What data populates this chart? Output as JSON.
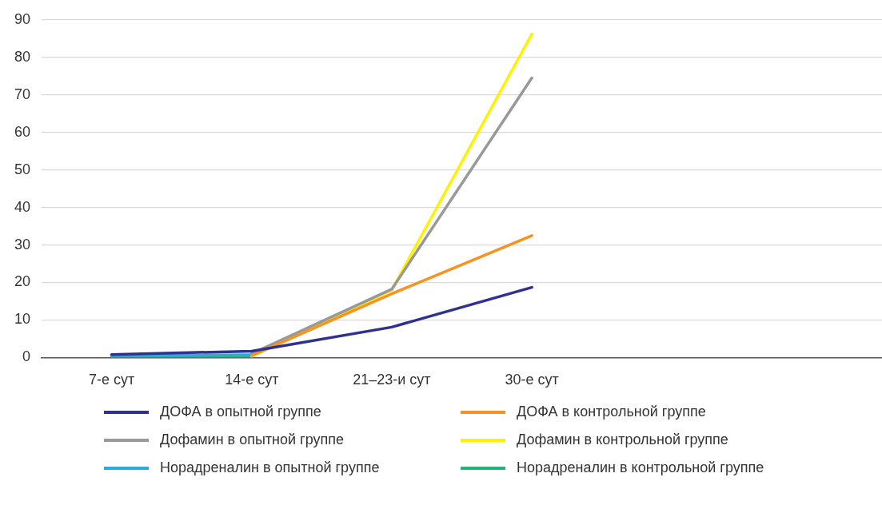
{
  "chart_data": {
    "type": "line",
    "categories": [
      "7-е сут",
      "14-е сут",
      "21–23-и сут",
      "30-е сут",
      null,
      null
    ],
    "series": [
      {
        "name": "ДОФА в опытной группе",
        "color": "#2e3192",
        "values": [
          0.8,
          1.7,
          8.1,
          18.7,
          null,
          null
        ]
      },
      {
        "name": "ДОФА в контрольной группе",
        "color": "#f7931e",
        "values": [
          null,
          0.5,
          17,
          32.5,
          null,
          null
        ]
      },
      {
        "name": "Дофамин в опытной группе",
        "color": "#999999",
        "values": [
          null,
          1,
          18.2,
          74.5,
          null,
          null
        ]
      },
      {
        "name": "Дофамин в контрольной группе",
        "color": "#fff200",
        "values": [
          null,
          0.3,
          18,
          86.2,
          null,
          null
        ]
      },
      {
        "name": "Норадреналин в опытной группе",
        "color": "#29abe2",
        "values": [
          0.5,
          0.7,
          null,
          null,
          null,
          null
        ]
      },
      {
        "name": "Норадреналин в контрольной группе",
        "color": "#22b573",
        "values": [
          0.1,
          0.1,
          null,
          null,
          null,
          null
        ]
      }
    ],
    "ylim": [
      0,
      90
    ],
    "yticks": [
      0,
      10,
      20,
      30,
      40,
      50,
      60,
      70,
      80,
      90
    ],
    "grid": "y",
    "legend": "bottom",
    "marker": "none",
    "line_style": "solid"
  }
}
